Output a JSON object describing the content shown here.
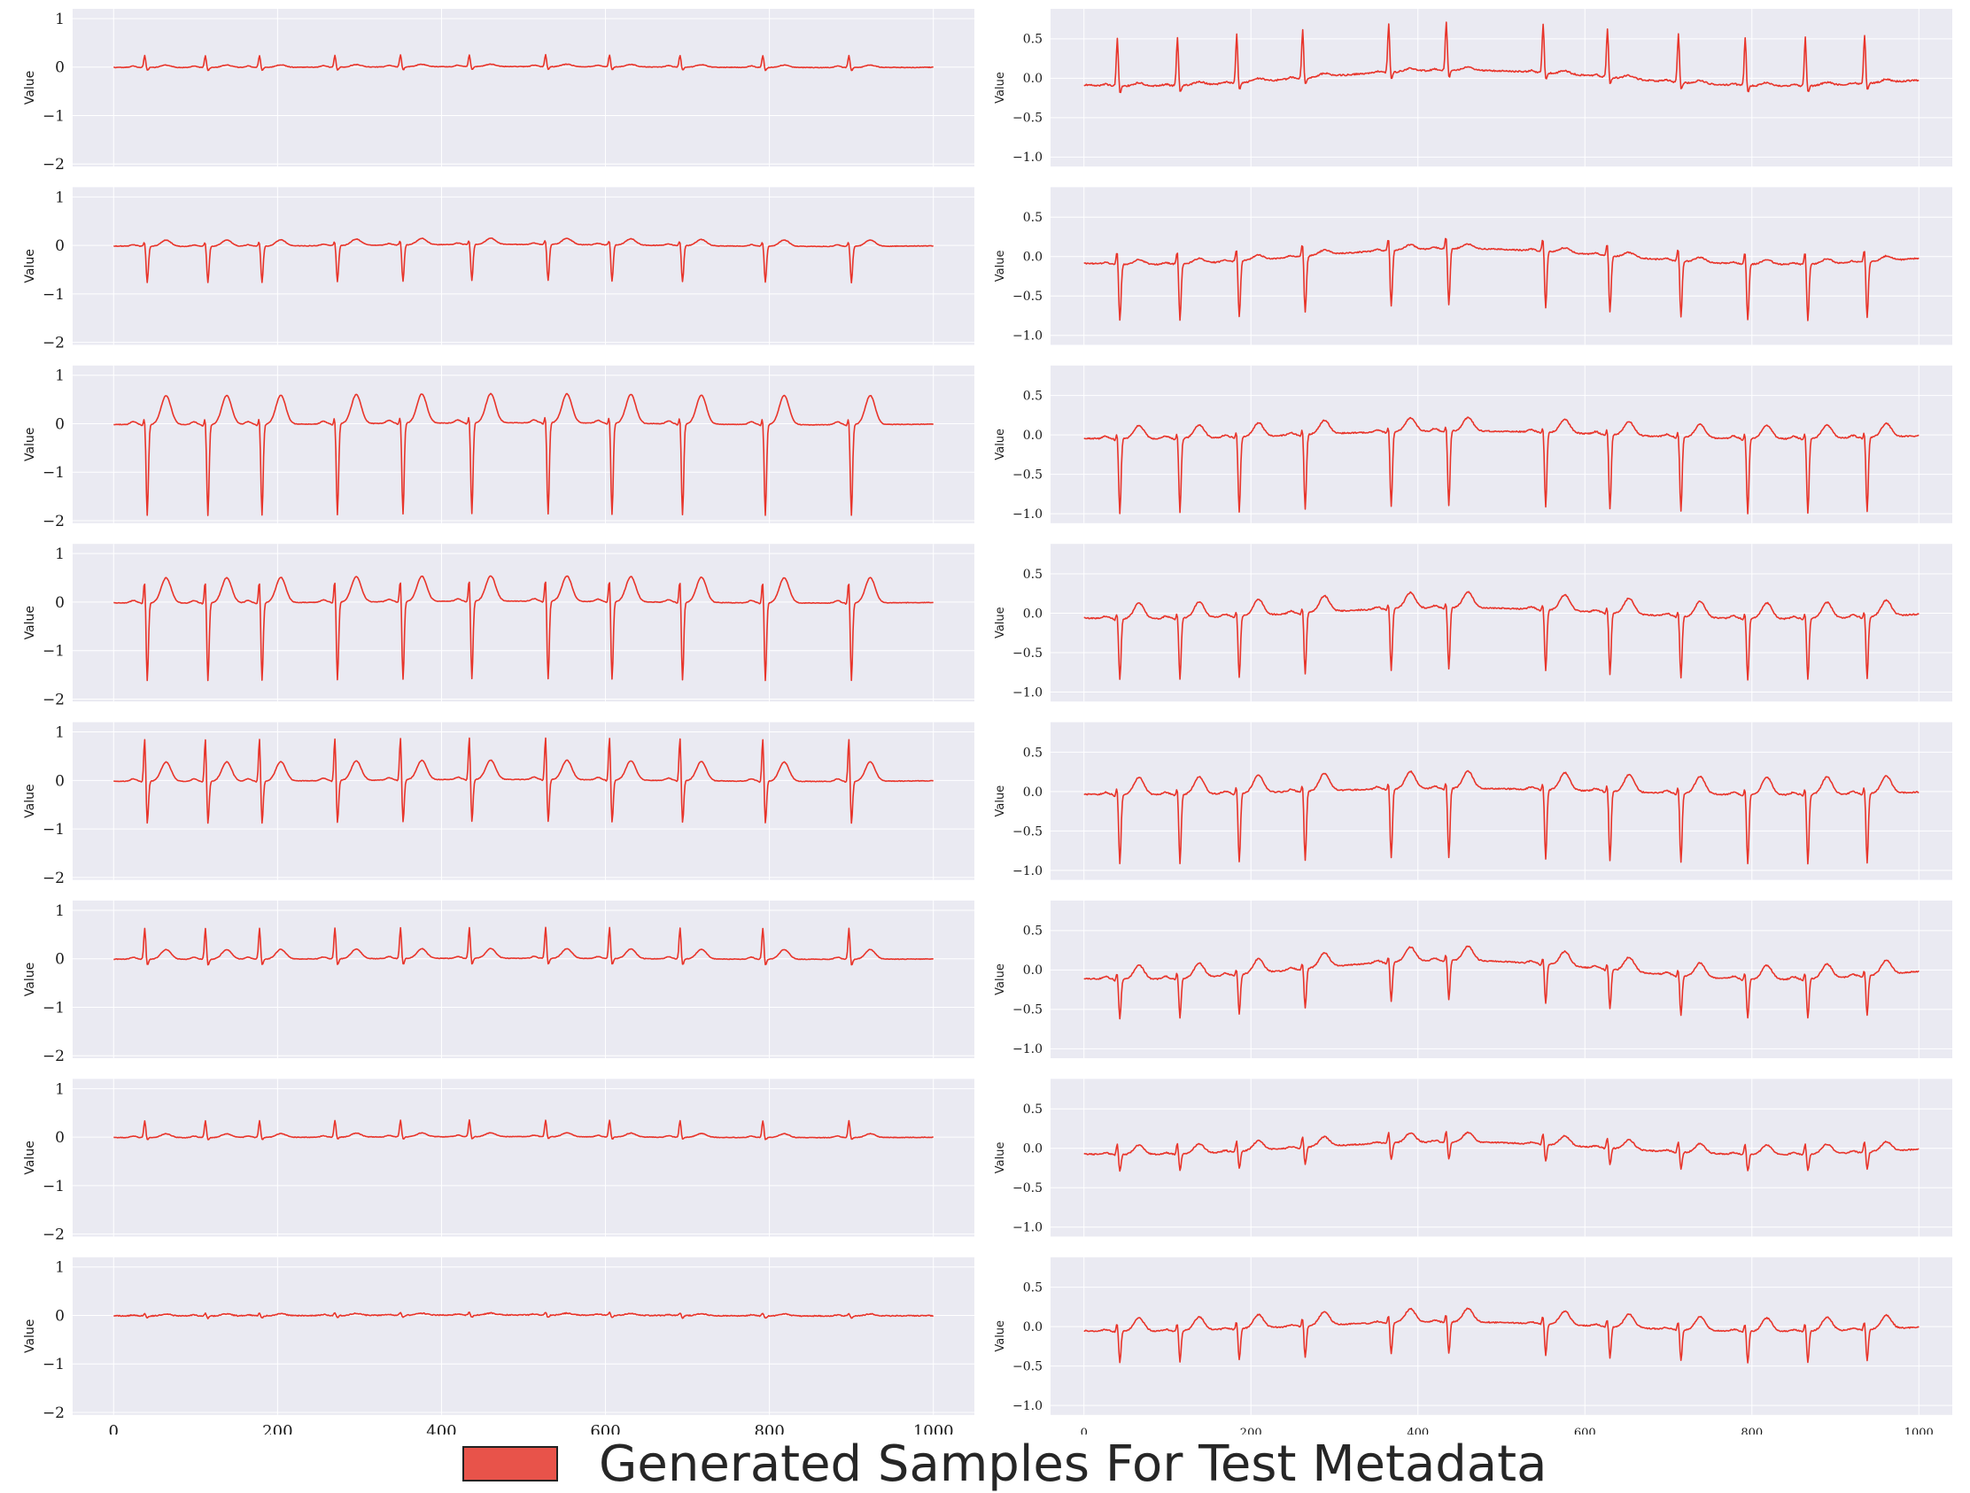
{
  "chart_data": {
    "type": "line",
    "series_color": "#e8342a",
    "background_color": "#eaeaf2",
    "legend": {
      "label": "Generated Samples For Test Metadata",
      "color": "#e8534a"
    },
    "columns": [
      {
        "name": "left",
        "xlim": [
          -50,
          1050
        ],
        "ylim": [
          -2.05,
          1.2
        ],
        "yticks": [
          1,
          0,
          -1,
          -2
        ],
        "ytick_labels": [
          "1",
          "0",
          "−1",
          "−2"
        ],
        "xticks": [
          0,
          200,
          400,
          600,
          800,
          1000
        ],
        "xtick_labels": [
          "0",
          "200",
          "400",
          "600",
          "800",
          "1000"
        ],
        "ylabel": "Value",
        "beats": [
          38,
          112,
          178,
          270,
          350,
          434,
          527,
          605,
          691,
          792,
          897
        ],
        "panels": [
          {
            "r": 0.25,
            "s": -0.07,
            "q": 0.0,
            "t": 0.05,
            "p": 0.03,
            "wander": 0.01,
            "noise": 0.006
          },
          {
            "r": 0.12,
            "s": -0.75,
            "q": 0.0,
            "t": 0.13,
            "p": 0.03,
            "wander": 0.02,
            "noise": 0.006
          },
          {
            "r": 0.2,
            "s": -1.88,
            "q": -0.03,
            "t": 0.6,
            "p": 0.06,
            "wander": 0.02,
            "noise": 0.006
          },
          {
            "r": 0.55,
            "s": -1.62,
            "q": -0.03,
            "t": 0.52,
            "p": 0.05,
            "wander": 0.02,
            "noise": 0.006
          },
          {
            "r": 0.95,
            "s": -0.9,
            "q": -0.03,
            "t": 0.4,
            "p": 0.05,
            "wander": 0.02,
            "noise": 0.006
          },
          {
            "r": 0.65,
            "s": -0.14,
            "q": 0.0,
            "t": 0.2,
            "p": 0.04,
            "wander": 0.01,
            "noise": 0.006
          },
          {
            "r": 0.35,
            "s": -0.05,
            "q": 0.0,
            "t": 0.08,
            "p": 0.03,
            "wander": 0.01,
            "noise": 0.006
          },
          {
            "r": 0.06,
            "s": -0.05,
            "q": 0.0,
            "t": 0.04,
            "p": 0.02,
            "wander": 0.01,
            "noise": 0.01
          }
        ]
      },
      {
        "name": "right",
        "xlim": [
          -40,
          1040
        ],
        "ylim": [
          -1.12,
          0.88
        ],
        "yticks": [
          0.5,
          0.0,
          -0.5,
          -1.0
        ],
        "ytick_labels": [
          "0.5",
          "0.0",
          "−0.5",
          "−1.0"
        ],
        "xticks": [
          0,
          200,
          400,
          600,
          800,
          1000
        ],
        "xtick_labels": [
          "0",
          "200",
          "400",
          "600",
          "800",
          "1000"
        ],
        "ylabel": "Value",
        "beats": [
          40,
          112,
          183,
          262,
          365,
          434,
          550,
          627,
          712,
          792,
          864,
          935
        ],
        "panels": [
          {
            "r": 0.62,
            "s": -0.1,
            "q": 0.0,
            "t": 0.04,
            "p": 0.02,
            "wander": 0.1,
            "noise": 0.01
          },
          {
            "r": 0.2,
            "s": -0.72,
            "q": 0.0,
            "t": 0.06,
            "p": 0.02,
            "wander": 0.1,
            "noise": 0.008
          },
          {
            "r": 0.1,
            "s": -0.95,
            "q": -0.02,
            "t": 0.17,
            "p": 0.03,
            "wander": 0.05,
            "noise": 0.008
          },
          {
            "r": 0.1,
            "s": -0.78,
            "q": -0.02,
            "t": 0.2,
            "p": 0.03,
            "wander": 0.07,
            "noise": 0.008
          },
          {
            "r": 0.12,
            "s": -0.88,
            "q": -0.02,
            "t": 0.22,
            "p": 0.03,
            "wander": 0.04,
            "noise": 0.008
          },
          {
            "r": 0.1,
            "s": -0.5,
            "q": -0.02,
            "t": 0.18,
            "p": 0.03,
            "wander": 0.12,
            "noise": 0.008
          },
          {
            "r": 0.15,
            "s": -0.22,
            "q": -0.01,
            "t": 0.12,
            "p": 0.02,
            "wander": 0.08,
            "noise": 0.008
          },
          {
            "r": 0.12,
            "s": -0.4,
            "q": -0.01,
            "t": 0.17,
            "p": 0.02,
            "wander": 0.06,
            "noise": 0.008
          }
        ]
      }
    ]
  }
}
